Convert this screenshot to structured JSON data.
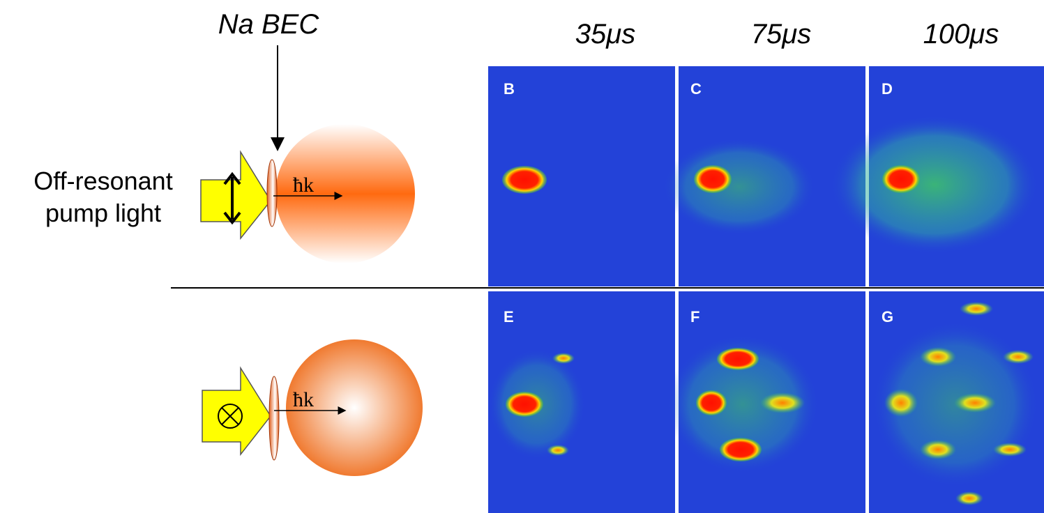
{
  "header": {
    "columns": [
      "35μs",
      "75μs",
      "100μs"
    ]
  },
  "diagram": {
    "top": {
      "atom_label": "Na BEC",
      "pump_label": [
        "Off-resonant",
        "pump light"
      ],
      "momentum": "ħk"
    },
    "bottom": {
      "momentum": "ħk"
    }
  },
  "panels": {
    "top_row": [
      "B",
      "C",
      "D"
    ],
    "bottom_row": [
      "E",
      "F",
      "G"
    ]
  }
}
